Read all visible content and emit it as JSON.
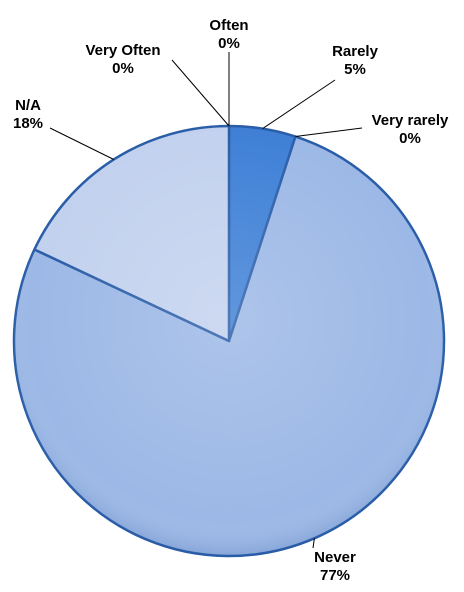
{
  "chart_data": {
    "type": "pie",
    "title": "",
    "slices": [
      {
        "name": "Often",
        "value": 0,
        "label": "0%",
        "color": "#2f6fc7"
      },
      {
        "name": "Rarely",
        "value": 5,
        "label": "5%",
        "color": "#3d7fd6"
      },
      {
        "name": "Very rarely",
        "value": 0,
        "label": "0%",
        "color": "#5a93de"
      },
      {
        "name": "Never",
        "value": 77,
        "label": "77%",
        "color": "#9cb8e6"
      },
      {
        "name": "N/A",
        "value": 18,
        "label": "18%",
        "color": "#c2d1ee"
      },
      {
        "name": "Very Often",
        "value": 0,
        "label": "0%",
        "color": "#d2def2"
      }
    ],
    "legend": "none",
    "data_labels": "outside-with-leader-lines",
    "edge_color": "#2a5da8"
  }
}
